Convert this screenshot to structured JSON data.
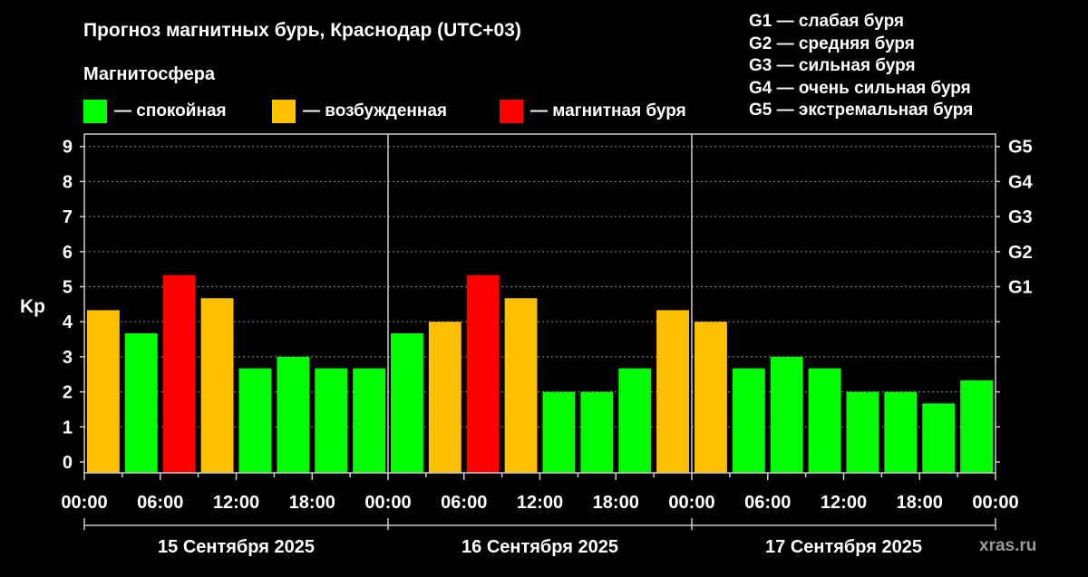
{
  "header": {
    "title": "Прогноз магнитных бурь, Краснодар (UTC+03)",
    "magnetosphere_label": "Магнитосфера"
  },
  "legend": [
    {
      "label": "— спокойная",
      "color": "#00ff00"
    },
    {
      "label": "— возбужденная",
      "color": "#ffc000"
    },
    {
      "label": "— магнитная буря",
      "color": "#ff0000"
    }
  ],
  "gscale": [
    "G1 — слабая буря",
    "G2 — средняя буря",
    "G3 — сильная буря",
    "G4 — очень сильная буря",
    "G5 — экстремальная буря"
  ],
  "watermark": "xras.ru",
  "chart_data": {
    "type": "bar",
    "ylabel": "Kp",
    "ylim": [
      0,
      9
    ],
    "yticks": [
      "0",
      "1",
      "2",
      "3",
      "4",
      "5",
      "6",
      "7",
      "8",
      "9"
    ],
    "right_ticks": [
      {
        "label": "G1",
        "kp": 5
      },
      {
        "label": "G2",
        "kp": 6
      },
      {
        "label": "G3",
        "kp": 7
      },
      {
        "label": "G4",
        "kp": 8
      },
      {
        "label": "G5",
        "kp": 9
      }
    ],
    "xtick_labels": [
      "00:00",
      "06:00",
      "12:00",
      "18:00",
      "00:00",
      "06:00",
      "12:00",
      "18:00",
      "00:00",
      "06:00",
      "12:00",
      "18:00",
      "00:00"
    ],
    "days": [
      "15 Сентября 2025",
      "16 Сентября 2025",
      "17 Сентября 2025"
    ],
    "grid": true,
    "colors": {
      "calm": "#00ff00",
      "excited": "#ffc000",
      "storm": "#ff0000"
    },
    "values": [
      4.33,
      3.67,
      5.33,
      4.67,
      2.67,
      3.0,
      2.67,
      2.67,
      3.67,
      4.0,
      5.33,
      4.67,
      2.0,
      2.0,
      2.67,
      4.33,
      4.0,
      2.67,
      3.0,
      2.67,
      2.0,
      2.0,
      1.67,
      2.33
    ],
    "levels": [
      "excited",
      "calm",
      "storm",
      "excited",
      "calm",
      "calm",
      "calm",
      "calm",
      "calm",
      "excited",
      "storm",
      "excited",
      "calm",
      "calm",
      "calm",
      "excited",
      "excited",
      "calm",
      "calm",
      "calm",
      "calm",
      "calm",
      "calm",
      "calm"
    ]
  }
}
